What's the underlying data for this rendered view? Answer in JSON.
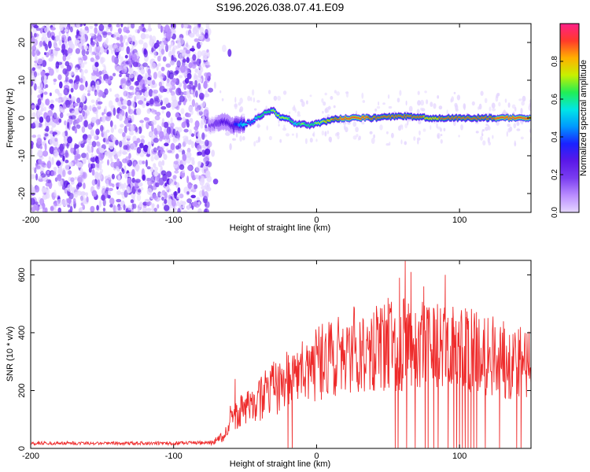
{
  "title": "S196.2026.038.07.41.E09",
  "colors": {
    "snr_line": "#ee2a2a",
    "plot_bg": "#ffffff",
    "axis": "#000000",
    "colormap": [
      "#e5d7ff",
      "#b98cff",
      "#7a3df0",
      "#5a18e8",
      "#1a22ff",
      "#0099ff",
      "#00e6e6",
      "#22ee55",
      "#c8f000",
      "#ffb000",
      "#ff3a2a",
      "#ff1f88"
    ]
  },
  "chart_data": [
    {
      "id": "spectrogram",
      "type": "heatmap",
      "xlabel": "Height of straight line (km)",
      "ylabel": "Frequency (Hz)",
      "xlim": [
        -200,
        150
      ],
      "ylim": [
        -25,
        25
      ],
      "xticks": [
        -200,
        -100,
        0,
        100
      ],
      "xtick_labels": [
        "-200",
        "-100",
        "0",
        "100"
      ],
      "yticks": [
        -20,
        -10,
        0,
        10,
        20
      ],
      "ytick_labels": [
        "-20",
        "-10",
        "0",
        "10",
        "20"
      ],
      "ridge": {
        "description": "frequency of maximum amplitude versus height",
        "x": [
          -75,
          -65,
          -58,
          -50,
          -45,
          -40,
          -35,
          -30,
          -25,
          -20,
          -15,
          -10,
          -5,
          0,
          10,
          20,
          40,
          60,
          80,
          100,
          120,
          150
        ],
        "freq": [
          -2,
          -1,
          -2,
          -1.5,
          -1,
          0.5,
          1.5,
          2,
          0,
          0,
          -1.5,
          -1.5,
          -2,
          -1.5,
          -0.5,
          0,
          0,
          0.5,
          0,
          0,
          0,
          0
        ],
        "amplitude": [
          0.15,
          0.25,
          0.3,
          0.55,
          0.45,
          0.65,
          0.6,
          0.7,
          0.75,
          0.7,
          0.55,
          0.7,
          0.6,
          0.7,
          0.85,
          0.95,
          0.9,
          0.9,
          0.85,
          0.9,
          0.9,
          0.95
        ]
      },
      "noise_region_x": [
        -200,
        -75
      ]
    },
    {
      "id": "snr",
      "type": "line",
      "xlabel": "Height of straight line (km)",
      "ylabel": "SNR (10 * v/v)",
      "xlim": [
        -200,
        150
      ],
      "ylim": [
        0,
        650
      ],
      "xticks": [
        -200,
        -100,
        0,
        100
      ],
      "xtick_labels": [
        "-200",
        "-100",
        "0",
        "100"
      ],
      "yticks": [
        0,
        200,
        400,
        600
      ],
      "ytick_labels": [
        "0",
        "200",
        "400",
        "600"
      ],
      "envelope": {
        "x": [
          -200,
          -150,
          -100,
          -75,
          -65,
          -60,
          -55,
          -45,
          -35,
          -25,
          -15,
          -5,
          0,
          10,
          20,
          30,
          40,
          50,
          60,
          70,
          80,
          90,
          100,
          110,
          120,
          130,
          140,
          150
        ],
        "y": [
          18,
          18,
          18,
          20,
          40,
          110,
          120,
          150,
          190,
          220,
          250,
          275,
          290,
          310,
          330,
          345,
          350,
          355,
          360,
          355,
          350,
          345,
          340,
          335,
          325,
          315,
          305,
          300
        ]
      },
      "spikes": [
        {
          "x": -57,
          "y": 240
        },
        {
          "x": -30,
          "y": 300
        },
        {
          "x": -10,
          "y": 370
        },
        {
          "x": 15,
          "y": 430
        },
        {
          "x": 40,
          "y": 470
        },
        {
          "x": 50,
          "y": 520
        },
        {
          "x": 58,
          "y": 590
        },
        {
          "x": 62,
          "y": 648
        },
        {
          "x": 66,
          "y": 610
        },
        {
          "x": 75,
          "y": 560
        },
        {
          "x": 90,
          "y": 600
        },
        {
          "x": 105,
          "y": 430
        },
        {
          "x": 130,
          "y": 400
        }
      ],
      "dropouts_x": [
        -20,
        -17,
        55,
        57,
        63,
        69,
        76,
        78,
        82,
        85,
        92,
        96,
        98,
        100,
        102,
        104,
        106,
        108,
        110,
        112,
        118,
        128,
        140,
        143
      ]
    }
  ],
  "colorbar": {
    "label": "Normalized spectral amplitude",
    "range": [
      0,
      1
    ],
    "ticks": [
      0.0,
      0.2,
      0.4,
      0.6,
      0.8
    ],
    "tick_labels": [
      "0.0",
      "0.2",
      "0.4",
      "0.6",
      "0.8"
    ]
  }
}
